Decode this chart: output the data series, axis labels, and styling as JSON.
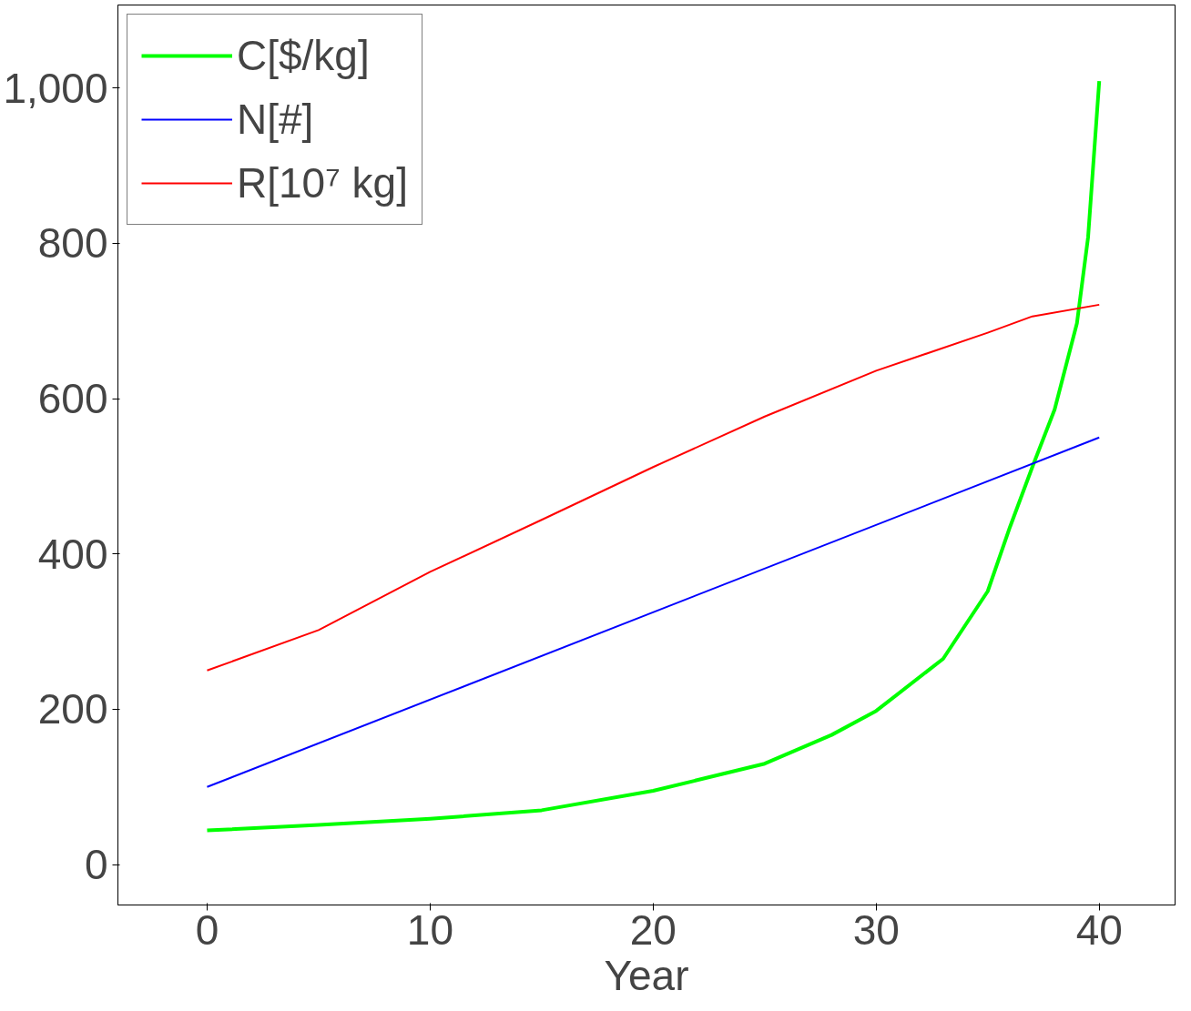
{
  "chart_data": {
    "type": "line",
    "xlabel": "Year",
    "xlim": [
      -4,
      43.4
    ],
    "ylim": [
      -52,
      1107
    ],
    "xticks": [
      0,
      10,
      20,
      30,
      40
    ],
    "yticks": [
      0,
      200,
      400,
      600,
      800,
      {
        "value": 1000,
        "label": "1,000"
      }
    ],
    "grid": false,
    "legend": "top left",
    "marker": "none",
    "line_style": "solid",
    "series": [
      {
        "name": "C[$/kg]",
        "color": "#00ff00",
        "x": [
          0,
          5,
          10,
          15,
          20,
          25,
          28,
          30,
          33,
          35,
          36,
          37,
          38,
          39,
          39.5,
          40
        ],
        "values": [
          44,
          51,
          59,
          70,
          95,
          130,
          167,
          198,
          265,
          352,
          435,
          512,
          586,
          697,
          808,
          1009
        ]
      },
      {
        "name": "N[#]",
        "color": "#0000ff",
        "x": [
          0,
          40
        ],
        "values": [
          100,
          550
        ]
      },
      {
        "name": "R[10⁷ kg]",
        "color": "#ff0000",
        "x": [
          0,
          5,
          10,
          15,
          20,
          25,
          30,
          35,
          37,
          40
        ],
        "values": [
          250,
          302,
          377,
          444,
          512,
          577,
          636,
          685,
          706,
          721
        ]
      }
    ]
  }
}
